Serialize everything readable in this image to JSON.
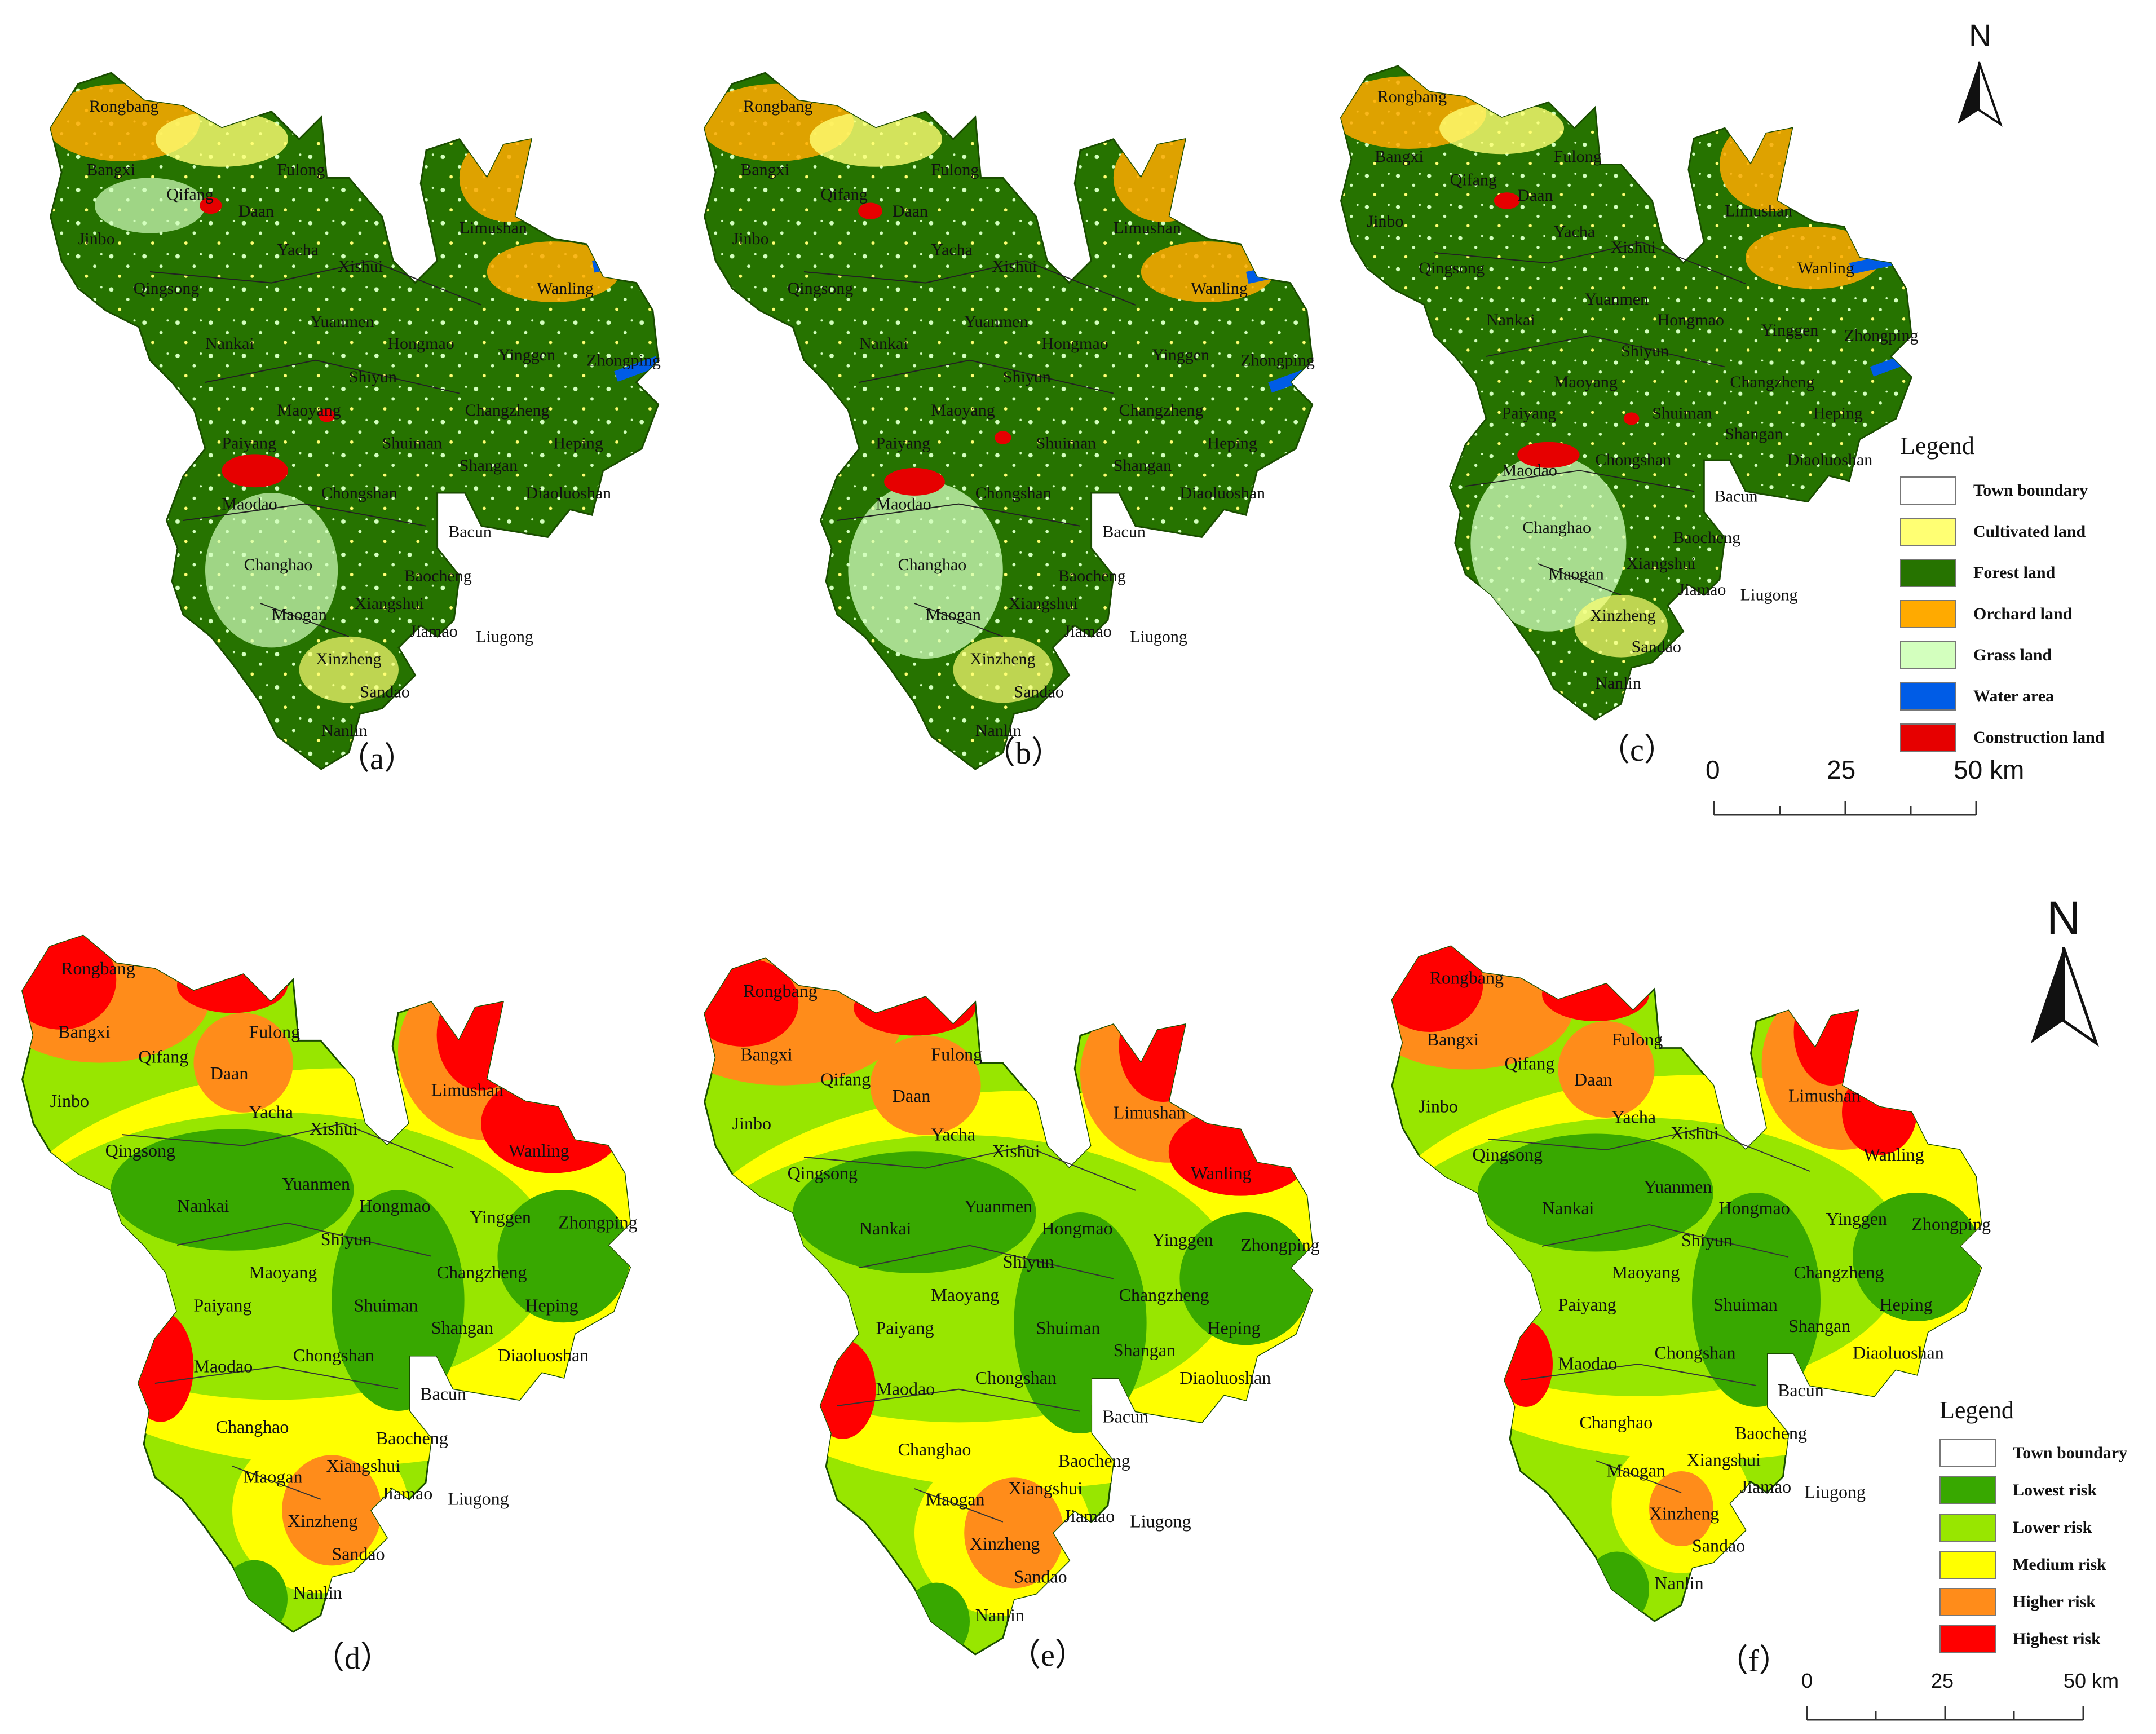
{
  "top_panels": {
    "labels": [
      "（a）",
      "（b）",
      "（c）"
    ],
    "legend": {
      "title": "Legend",
      "items": [
        {
          "label": "Town boundary",
          "color": "#ffffff"
        },
        {
          "label": "Cultivated land",
          "color": "#ffff73"
        },
        {
          "label": "Forest land",
          "color": "#267300"
        },
        {
          "label": "Orchard land",
          "color": "#ffaa00"
        },
        {
          "label": "Grass land",
          "color": "#d3ffbe"
        },
        {
          "label": "Water area",
          "color": "#005ce6"
        },
        {
          "label": "Construction land",
          "color": "#e60000"
        }
      ]
    },
    "north_label": "N",
    "scale": {
      "ticks": [
        "0",
        "25",
        "50 km"
      ]
    }
  },
  "bottom_panels": {
    "labels": [
      "（d）",
      "（e）",
      "（f）"
    ],
    "legend": {
      "title": "Legend",
      "items": [
        {
          "label": "Town boundary",
          "color": "#ffffff"
        },
        {
          "label": "Lowest risk",
          "color": "#38a800"
        },
        {
          "label": "Lower risk",
          "color": "#98e600"
        },
        {
          "label": "Medium risk",
          "color": "#ffff00"
        },
        {
          "label": "Higher risk",
          "color": "#ff8c1a"
        },
        {
          "label": "Highest risk",
          "color": "#ff0000"
        }
      ]
    },
    "north_label": "N",
    "scale": {
      "ticks": [
        "0",
        "25",
        "50 km"
      ]
    }
  },
  "towns": {
    "a": [
      "Rongbang",
      "Bangxi",
      "Qifang",
      "Fulong",
      "Daan",
      "Jinbo",
      "Yacha",
      "Xishui",
      "Limushan",
      "Qingsong",
      "Wanling",
      "Yuanmen",
      "Nankai",
      "Hongmao",
      "Yinggen",
      "Zhongping",
      "Shiyun",
      "Maoyang",
      "Changzheng",
      "Paiyang",
      "Heping",
      "Shuiman",
      "Shangan",
      "Diaoluoshan",
      "Maodao",
      "Chongshan",
      "Bacun",
      "Changhao",
      "Baocheng",
      "Maogan",
      "Xiangshui",
      "Liugong",
      "Jiamao",
      "Xinzheng",
      "Sandao",
      "Nanlin"
    ],
    "b": [
      "Rongbang",
      "Bangxi",
      "Qifang",
      "Fulong",
      "Daan",
      "Jinbo",
      "Yacha",
      "Xishui",
      "Limushan",
      "Qingsong",
      "Wanling",
      "Yuanmen",
      "Nankai",
      "Hongmao",
      "Yinggen",
      "Zhongping",
      "Shiyun",
      "Maoyang",
      "Changzheng",
      "Paiyang",
      "Heping",
      "Shuiman",
      "Shangan",
      "Diaoluoshan",
      "Maodao",
      "Chongshan",
      "Bacun",
      "Changhao",
      "Baocheng",
      "Maogan",
      "Xiangshui",
      "Jiamao",
      "Liugong",
      "Xinzheng",
      "Sandao",
      "Nanlin"
    ],
    "c": [
      "Rongbang",
      "Bangxi",
      "Fulong",
      "Qifang",
      "Daan",
      "Limushan",
      "Jinbo",
      "Yacha",
      "Xishui",
      "Qingsong",
      "Wanling",
      "Yuanmen",
      "Nankai",
      "Hongmao",
      "Yinggen",
      "Zhongping",
      "Shiyun",
      "Changzheng",
      "Maoyang",
      "Paiyang",
      "Heping",
      "Shuiman",
      "Shangan",
      "Maodao",
      "Diaoluoshan",
      "Chongshan",
      "Bacun",
      "Changhao",
      "Baocheng",
      "Xiangshui",
      "Maogan",
      "Jiamao",
      "Liugong",
      "Xinzheng",
      "Sandao",
      "Nanlin"
    ],
    "d": [
      "Rongbang",
      "Bangxi",
      "Fulong",
      "Qifang",
      "Daan",
      "Jinbo",
      "Limushan",
      "Yacha",
      "Xishui",
      "Qingsong",
      "Wanling",
      "Yuanmen",
      "Nankai",
      "Hongmao",
      "Yinggen",
      "Zhongping",
      "Shiyun",
      "Maoyang",
      "Changzheng",
      "Paiyang",
      "Heping",
      "Shuiman",
      "Shangan",
      "Diaoluoshan",
      "Chongshan",
      "Maodao",
      "Bacun",
      "Changhao",
      "Baocheng",
      "Maogan",
      "Xiangshui",
      "Jiamao",
      "Liugong",
      "Xinzheng",
      "Sandao",
      "Nanlin"
    ],
    "e": [
      "Rongbang",
      "Bangxi",
      "Fulong",
      "Qifang",
      "Limushan",
      "Daan",
      "Jinbo",
      "Yacha",
      "Xishui",
      "Wanling",
      "Qingsong",
      "Yuanmen",
      "Yinggen",
      "Zhongping",
      "Nankai",
      "Hongmao",
      "Shiyun",
      "Changzheng",
      "Maoyang",
      "Heping",
      "Paiyang",
      "Shuiman",
      "Shangan",
      "Diaoluoshan",
      "Chongshan",
      "Maodao",
      "Bacun",
      "Changhao",
      "Baocheng",
      "Xiangshui",
      "Maogan",
      "Jiamao",
      "Liugong",
      "Xinzheng",
      "Sandao",
      "Nanlin"
    ],
    "f": [
      "Rongbang",
      "Bangxi",
      "Fulong",
      "Qifang",
      "Daan",
      "Limushan",
      "Jinbo",
      "Yacha",
      "Xishui",
      "Wanling",
      "Qingsong",
      "Yuanmen",
      "Nankai",
      "Hongmao",
      "Yinggen",
      "Zhongping",
      "Shiyun",
      "Changzheng",
      "Maoyang",
      "Paiyang",
      "Heping",
      "Shuiman",
      "Shangan",
      "Diaoluoshan",
      "Chongshan",
      "Maodao",
      "Bacun",
      "Changhao",
      "Baocheng",
      "Xiangshui",
      "Maogan",
      "Jiamao",
      "Liugong",
      "Xinzheng",
      "Sandao",
      "Nanlin"
    ]
  }
}
